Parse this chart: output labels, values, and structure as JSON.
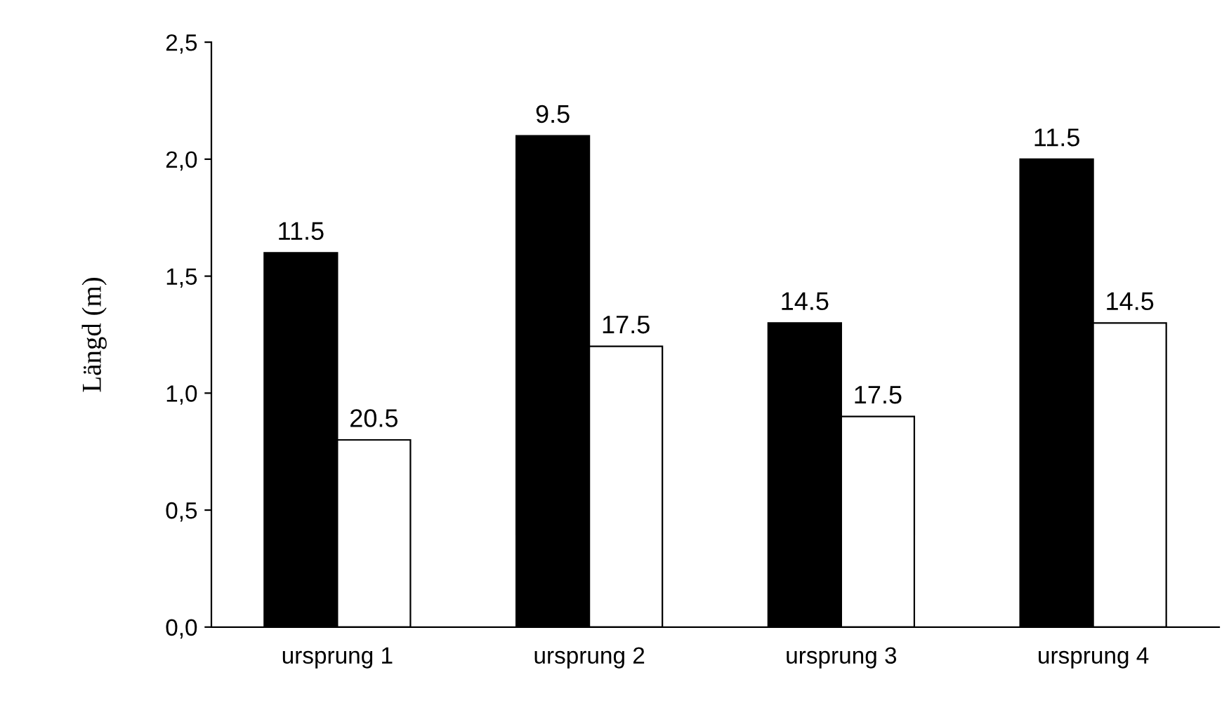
{
  "chart_data": {
    "type": "bar",
    "ylabel": "Längd (m)",
    "categories": [
      "ursprung 1",
      "ursprung 2",
      "ursprung 3",
      "ursprung 4"
    ],
    "series": [
      {
        "color": "#000000",
        "values": [
          1.6,
          2.1,
          1.3,
          2.0
        ]
      },
      {
        "color": "#ffffff",
        "values": [
          0.8,
          1.2,
          0.9,
          1.3
        ]
      }
    ],
    "annotations": [
      {
        "text": "11.5",
        "x": "ursprung 1",
        "y": 1.6
      },
      {
        "text": "9.5",
        "x": "ursprung 2",
        "y": 2.1
      },
      {
        "text": "14.5",
        "x": "ursprung 3",
        "y": 1.3
      },
      {
        "text": "11.5",
        "x": "ursprung 4",
        "y": 2.0
      },
      {
        "text": "20.5",
        "x": "ursprung 1",
        "y": 0.8
      },
      {
        "text": "17.5",
        "x": "ursprung 2",
        "y": 1.2
      },
      {
        "text": "17.5",
        "x": "ursprung 3",
        "y": 0.9
      },
      {
        "text": "14.5",
        "x": "ursprung 4",
        "y": 1.3
      }
    ],
    "ylim": [
      0,
      2.5
    ],
    "yticks": [
      {
        "value": 0,
        "label": "0,0"
      },
      {
        "value": 0.5,
        "label": "0,5"
      },
      {
        "value": 1.0,
        "label": "1,0"
      },
      {
        "value": 1.5,
        "label": "1,5"
      },
      {
        "value": 2.0,
        "label": "2,0"
      },
      {
        "value": 2.5,
        "label": "2,5"
      }
    ],
    "grid": false,
    "legend": false
  }
}
